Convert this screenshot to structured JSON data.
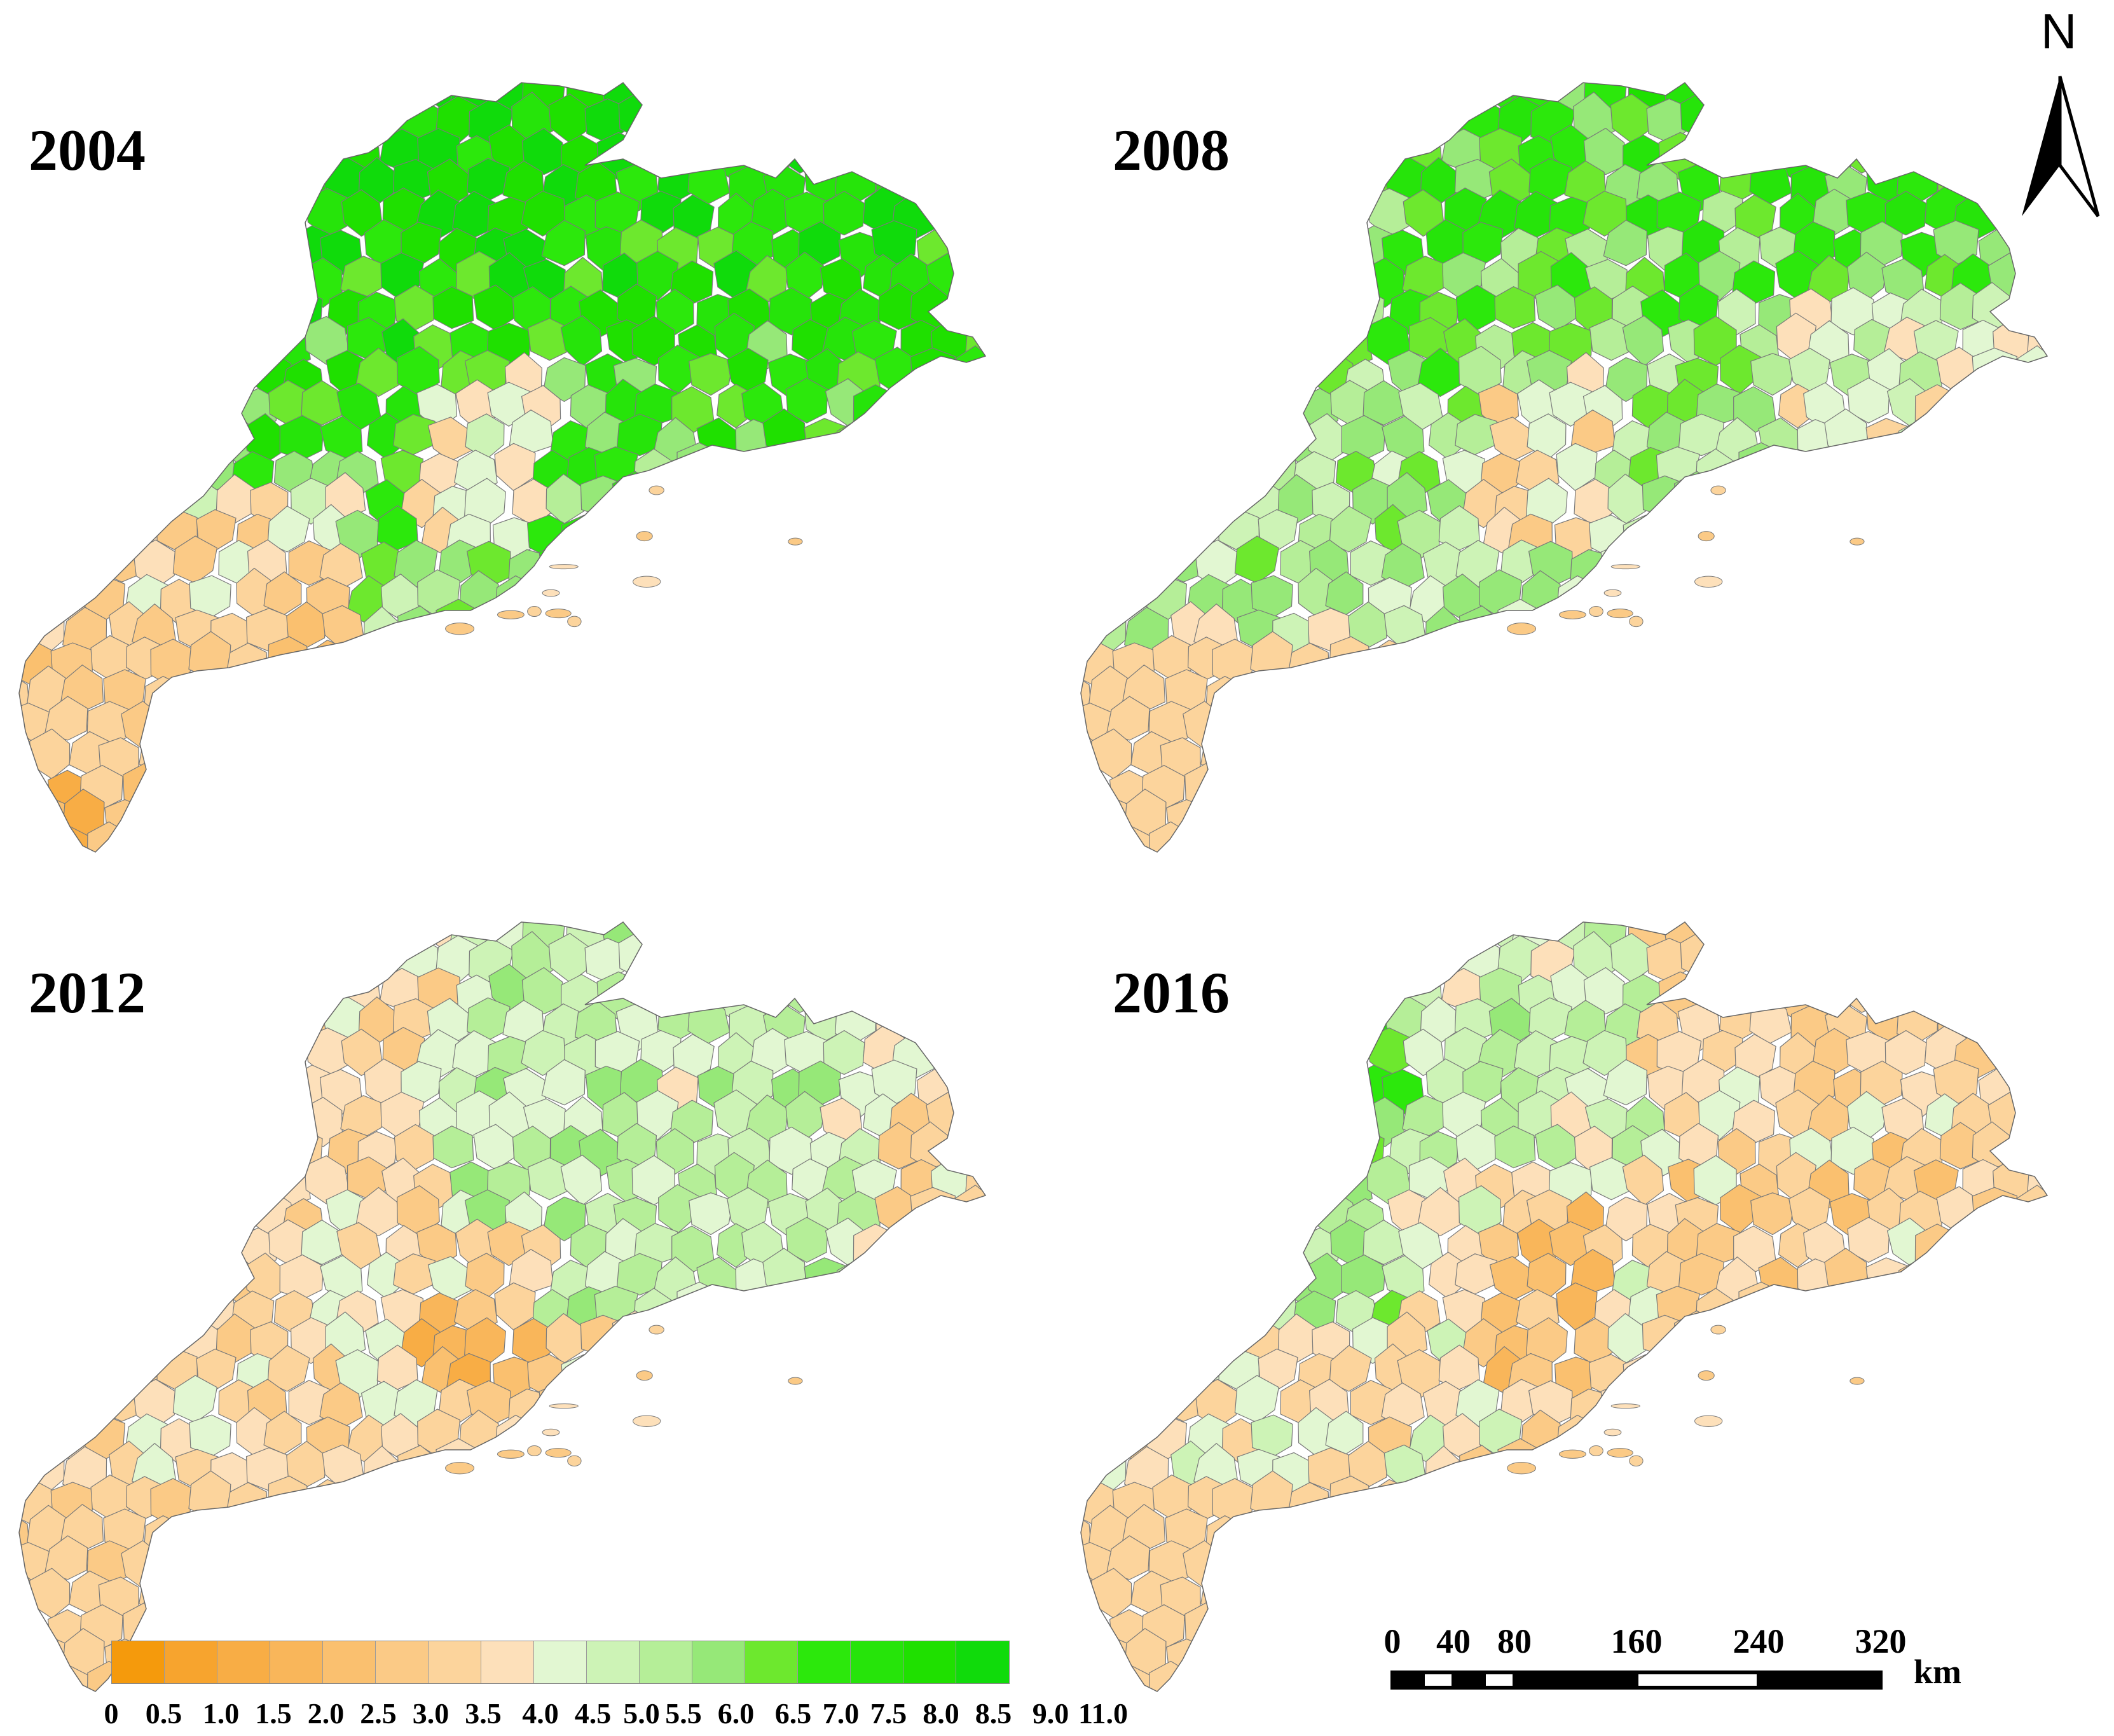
{
  "panels": [
    {
      "year": "2004",
      "profile": "green"
    },
    {
      "year": "2008",
      "profile": "mid"
    },
    {
      "year": "2012",
      "profile": "orange"
    },
    {
      "year": "2016",
      "profile": "mixed"
    }
  ],
  "north_arrow": {
    "letter": "N"
  },
  "legend": {
    "colors": [
      "#F59A0C",
      "#F7A42E",
      "#F8AD45",
      "#F9B65A",
      "#FAC06F",
      "#FBCA86",
      "#FCD49C",
      "#FDE0BA",
      "#E2F7D2",
      "#CDF3B6",
      "#B5EE98",
      "#96E878",
      "#6DE82E",
      "#2CE80C",
      "#26E40A",
      "#1FE000",
      "#10DB0B"
    ],
    "ticks": [
      "0",
      "0.5",
      "1.0",
      "1.5",
      "2.0",
      "2.5",
      "3.0",
      "3.5",
      "4.0",
      "4.5",
      "5.0",
      "5.5",
      "6.0",
      "6.5",
      "7.0",
      "7.5",
      "8.0",
      "8.5",
      "9.0",
      "11.0"
    ]
  },
  "scale_bar": {
    "labels": [
      "0",
      "40",
      "80",
      "160",
      "240",
      "320"
    ],
    "values": [
      0,
      40,
      80,
      160,
      240,
      320
    ],
    "unit": "km"
  }
}
